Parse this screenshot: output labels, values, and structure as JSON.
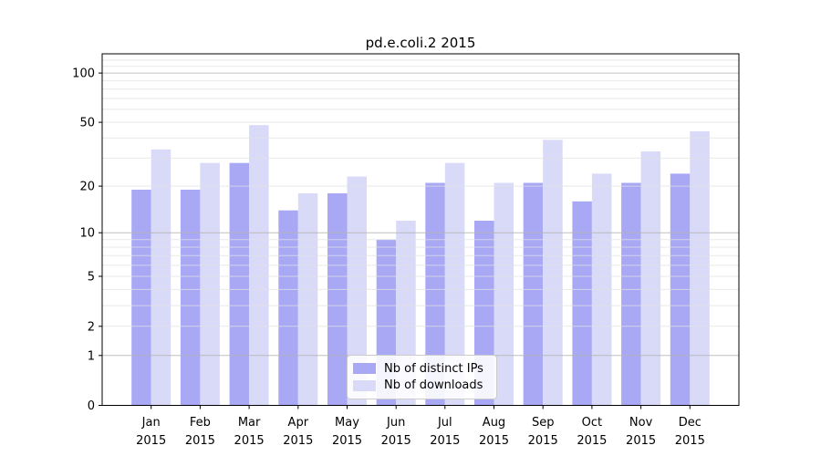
{
  "chart_data": {
    "type": "bar",
    "title": "pd.e.coli.2 2015",
    "xlabel": "",
    "ylabel": "",
    "categories": [
      "Jan 2015",
      "Feb 2015",
      "Mar 2015",
      "Apr 2015",
      "May 2015",
      "Jun 2015",
      "Jul 2015",
      "Aug 2015",
      "Sep 2015",
      "Oct 2015",
      "Nov 2015",
      "Dec 2015"
    ],
    "series": [
      {
        "name": "Nb of distinct IPs",
        "color": "#a8a8f5",
        "values": [
          19,
          19,
          28,
          14,
          18,
          9,
          21,
          12,
          21,
          16,
          21,
          24
        ]
      },
      {
        "name": "Nb of downloads",
        "color": "#d9d9f8",
        "values": [
          34,
          28,
          48,
          18,
          23,
          12,
          28,
          21,
          39,
          24,
          33,
          44
        ]
      }
    ],
    "yticks": [
      0,
      1,
      2,
      5,
      10,
      20,
      50,
      100
    ],
    "ylim": [
      0,
      131
    ],
    "scale": "log1p",
    "grid": {
      "minor_lines": [
        2,
        3,
        4,
        5,
        6,
        7,
        8,
        9,
        20,
        30,
        40,
        50,
        60,
        70,
        80,
        90,
        110,
        120
      ],
      "major_lines": [
        1,
        10,
        100
      ]
    },
    "legend_position": "bottom-center"
  },
  "colors": {
    "background": "#ffffff",
    "axis": "#000000",
    "text": "#000000",
    "grid_minor": "#e2e2e2",
    "grid_major": "#b5b5b5",
    "legend_border": "#cccccc"
  }
}
